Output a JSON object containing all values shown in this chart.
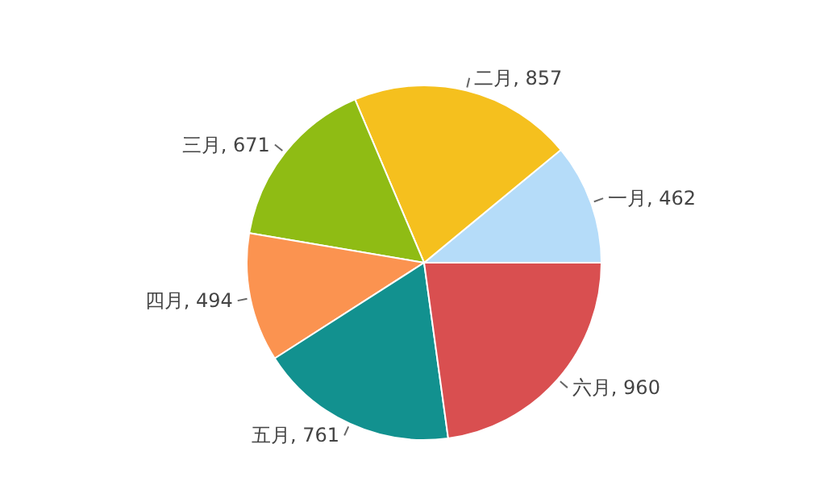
{
  "chart_data": {
    "type": "pie",
    "categories": [
      "一月",
      "二月",
      "三月",
      "四月",
      "五月",
      "六月"
    ],
    "values": [
      462,
      857,
      671,
      494,
      761,
      960
    ],
    "colors": [
      "#b5dcf9",
      "#f5c01e",
      "#8fbc14",
      "#fb9350",
      "#12918f",
      "#d94f50"
    ],
    "value_labels": [
      ", 462",
      ", 857",
      ", 671",
      ", 494",
      ", 761",
      ", 960"
    ]
  }
}
